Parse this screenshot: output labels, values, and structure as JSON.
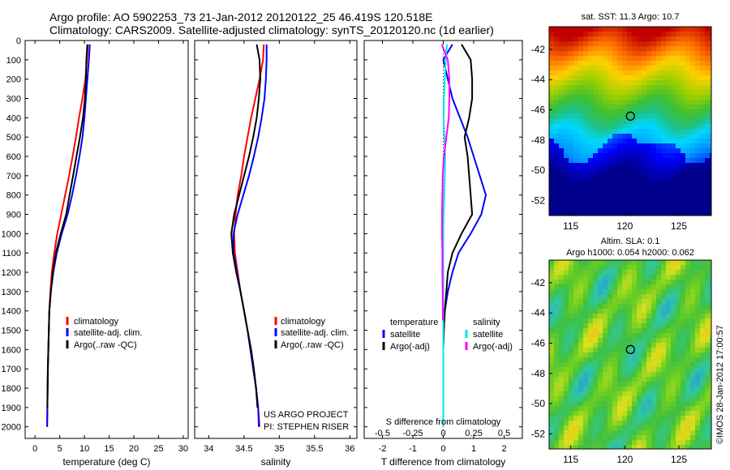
{
  "header": {
    "line1": "Argo profile: AO 5902253_73 21-Jan-2012 20120122_25 46.419S 120.518E",
    "line2": "Climatology: CARS2009. Satellite-adjusted climatology: synTS_20120120.nc (1d earlier)"
  },
  "project": {
    "line1": "US ARGO PROJECT",
    "line2": "PI: STEPHEN RISER"
  },
  "credit": "©IMOS 28-Jan-2012 17:00:57",
  "colors": {
    "clim": "#ff0000",
    "sat": "#0000ff",
    "argo": "#000000",
    "cyan": "#00e5ee",
    "magenta": "#ff00ff"
  },
  "chart_data": [
    {
      "type": "line",
      "id": "temperature",
      "xlabel": "temperature (deg C)",
      "ylabel": "",
      "xlim": [
        -2,
        31
      ],
      "ylim": [
        0,
        2060
      ],
      "xticks": [
        0,
        5,
        10,
        15,
        20,
        25,
        30
      ],
      "yticks": [
        0,
        100,
        200,
        300,
        400,
        500,
        600,
        700,
        800,
        900,
        1000,
        1100,
        1200,
        1300,
        1400,
        1500,
        1600,
        1700,
        1800,
        1900,
        2000
      ],
      "legend": [
        "climatology",
        "satellite-adj. clim.",
        "Argo(..raw -QC)"
      ],
      "series": [
        {
          "name": "climatology",
          "color": "#ff0000",
          "x": [
            10.7,
            10.5,
            10.2,
            9.6,
            8.9,
            8.3,
            7.6,
            6.9,
            6.1,
            5.3,
            4.5,
            3.9,
            3.4,
            3.1,
            2.9,
            2.8,
            2.7,
            2.6,
            2.55,
            2.5,
            2.45
          ],
          "y": [
            20,
            100,
            200,
            300,
            400,
            500,
            600,
            700,
            800,
            900,
            1000,
            1100,
            1200,
            1300,
            1400,
            1500,
            1600,
            1700,
            1800,
            1900,
            2000
          ]
        },
        {
          "name": "satellite-adj. clim.",
          "color": "#0000ff",
          "x": [
            11.1,
            10.9,
            10.6,
            10.3,
            10.0,
            9.6,
            9.0,
            8.3,
            7.5,
            6.6,
            5.4,
            4.4,
            3.7,
            3.2,
            2.9,
            2.8,
            2.7,
            2.6,
            2.55,
            2.5,
            2.45
          ],
          "y": [
            20,
            100,
            200,
            300,
            400,
            500,
            600,
            700,
            800,
            900,
            1000,
            1100,
            1200,
            1300,
            1400,
            1500,
            1600,
            1700,
            1800,
            1900,
            2000
          ]
        },
        {
          "name": "Argo(..raw -QC)",
          "color": "#000000",
          "x": [
            10.6,
            10.4,
            10.3,
            10.1,
            9.7,
            9.1,
            8.4,
            7.7,
            7.0,
            6.3,
            5.2,
            4.2,
            3.6,
            3.2,
            2.9,
            2.8,
            2.7,
            2.6,
            2.55,
            2.5
          ],
          "y": [
            20,
            100,
            200,
            300,
            400,
            500,
            600,
            700,
            800,
            900,
            1000,
            1100,
            1200,
            1300,
            1400,
            1500,
            1600,
            1700,
            1800,
            1900
          ]
        }
      ]
    },
    {
      "type": "line",
      "id": "salinity",
      "xlabel": "salinity",
      "ylabel": "",
      "xlim": [
        33.8,
        36.1
      ],
      "ylim": [
        0,
        2060
      ],
      "xticks": [
        34,
        34.5,
        35,
        35.5,
        36
      ],
      "legend": [
        "climatology",
        "satellite-adj. clim.",
        "Argo(..raw -QC)"
      ],
      "series": [
        {
          "name": "climatology",
          "color": "#ff0000",
          "x": [
            34.78,
            34.77,
            34.72,
            34.66,
            34.6,
            34.55,
            34.5,
            34.46,
            34.41,
            34.38,
            34.36,
            34.37,
            34.41,
            34.45,
            34.5,
            34.55,
            34.59,
            34.63,
            34.67,
            34.7,
            34.72
          ],
          "y": [
            20,
            100,
            200,
            300,
            400,
            500,
            600,
            700,
            800,
            900,
            1000,
            1100,
            1200,
            1300,
            1400,
            1500,
            1600,
            1700,
            1800,
            1900,
            2000
          ]
        },
        {
          "name": "satellite-adj. clim.",
          "color": "#0000ff",
          "x": [
            34.82,
            34.82,
            34.81,
            34.79,
            34.75,
            34.7,
            34.64,
            34.57,
            34.49,
            34.41,
            34.35,
            34.35,
            34.4,
            34.45,
            34.5,
            34.55,
            34.59,
            34.63,
            34.67,
            34.7,
            34.71
          ],
          "y": [
            20,
            100,
            200,
            300,
            400,
            500,
            600,
            700,
            800,
            900,
            1000,
            1100,
            1200,
            1300,
            1400,
            1500,
            1600,
            1700,
            1800,
            1900,
            2000
          ]
        },
        {
          "name": "Argo(..raw -QC)",
          "color": "#000000",
          "x": [
            34.68,
            34.72,
            34.73,
            34.71,
            34.68,
            34.63,
            34.57,
            34.5,
            34.43,
            34.36,
            34.32,
            34.34,
            34.39,
            34.45,
            34.5,
            34.55,
            34.6,
            34.64,
            34.67,
            34.69
          ],
          "y": [
            20,
            100,
            200,
            300,
            400,
            500,
            600,
            700,
            800,
            900,
            1000,
            1100,
            1200,
            1300,
            1400,
            1500,
            1600,
            1700,
            1800,
            1900
          ]
        }
      ]
    },
    {
      "type": "line",
      "id": "difference",
      "xlabel": "T difference from climatology",
      "xlabel_top": "S difference from climatology",
      "xlim": [
        -2.6,
        2.6
      ],
      "ylim": [
        0,
        2060
      ],
      "xticks": [
        -2,
        -1,
        0,
        1,
        2
      ],
      "xtick_labels": [
        "-2",
        "-1",
        "0",
        "1",
        "2"
      ],
      "s_xticks": [
        -0.5,
        -0.25,
        0,
        0.25,
        0.5
      ],
      "s_xtick_labels": [
        "-0.5",
        "-0.25",
        "0",
        "0.25",
        "0.5"
      ],
      "legend_groups": [
        {
          "title": "temperature",
          "items": [
            "satellite",
            "Argo(-adj)"
          ]
        },
        {
          "title": "salinity",
          "items": [
            "satellite",
            "Argo(-adj)"
          ]
        }
      ],
      "series": [
        {
          "name": "temperature satellite",
          "color": "#0000ff",
          "x": [
            0.3,
            0.0,
            0.15,
            0.3,
            0.55,
            0.8,
            1.0,
            1.2,
            1.4,
            1.25,
            0.9,
            0.5,
            0.3,
            0.15,
            0.05,
            0.0,
            0.0,
            0.0,
            0.0,
            0.0
          ],
          "y": [
            20,
            100,
            200,
            300,
            400,
            500,
            600,
            700,
            800,
            900,
            1000,
            1100,
            1200,
            1300,
            1400,
            1500,
            1600,
            1700,
            1800,
            2000
          ]
        },
        {
          "name": "temperature Argo(-adj)",
          "color": "#000000",
          "x": [
            0.6,
            0.9,
            0.95,
            0.95,
            0.85,
            0.7,
            0.8,
            0.85,
            0.9,
            0.95,
            0.6,
            0.3,
            0.15,
            0.1,
            0.05,
            0.02,
            0.0,
            0.0,
            0.0
          ],
          "y": [
            20,
            100,
            200,
            300,
            400,
            500,
            600,
            700,
            800,
            900,
            1000,
            1100,
            1200,
            1300,
            1400,
            1500,
            1600,
            1700,
            1900
          ]
        },
        {
          "name": "salinity satellite",
          "color": "#00e5ee",
          "x": [
            0.12,
            0.08,
            0.05,
            0.02,
            0.01,
            0.04,
            0.06,
            0.05,
            0.03,
            0.01,
            0.0,
            0.0,
            0.0,
            0.0,
            0.0,
            0.0,
            0.0,
            0.0,
            0.0
          ],
          "y": [
            20,
            100,
            200,
            300,
            400,
            500,
            600,
            700,
            800,
            900,
            1000,
            1100,
            1200,
            1300,
            1400,
            1500,
            1600,
            1700,
            2000
          ]
        },
        {
          "name": "salinity Argo(-adj)",
          "color": "#ff00ff",
          "x": [
            -0.05,
            0.15,
            0.2,
            0.2,
            0.18,
            0.1,
            0.02,
            -0.02,
            -0.03,
            -0.04,
            -0.04,
            -0.03,
            -0.03,
            -0.02,
            -0.02,
            -0.01
          ],
          "y": [
            20,
            100,
            200,
            300,
            400,
            500,
            600,
            700,
            800,
            900,
            1000,
            1100,
            1200,
            1300,
            1400,
            1450
          ]
        }
      ]
    },
    {
      "type": "heatmap",
      "id": "sst-map",
      "title": "sat. SST: 11.3  Argo: 10.7",
      "xticks": [
        115,
        120,
        125
      ],
      "yticks": [
        -42,
        -44,
        -46,
        -48,
        -50,
        -52
      ],
      "xlim": [
        113,
        128
      ],
      "ylim": [
        -53,
        -40.5
      ],
      "marker": {
        "lon": 120.518,
        "lat": -46.419
      }
    },
    {
      "type": "heatmap",
      "id": "sla-map",
      "title": "Altim. SLA: 0.1",
      "subtitle": "Argo h1000: 0.054  h2000: 0.062",
      "xticks": [
        115,
        120,
        125
      ],
      "yticks": [
        -42,
        -44,
        -46,
        -48,
        -50,
        -52
      ],
      "xlim": [
        113,
        128
      ],
      "ylim": [
        -53,
        -40.5
      ],
      "marker": {
        "lon": 120.518,
        "lat": -46.419
      }
    }
  ]
}
